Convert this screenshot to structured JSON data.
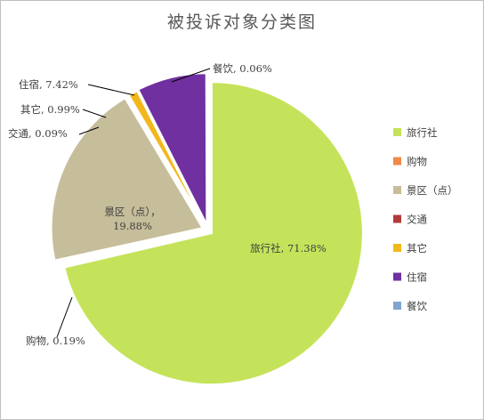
{
  "chart_data": {
    "type": "pie",
    "title": "被投诉对象分类图",
    "series": [
      {
        "name": "旅行社",
        "value": 71.38,
        "label": "旅行社, 71.38%",
        "color": "#c5e35a"
      },
      {
        "name": "购物",
        "value": 0.19,
        "label": "购物, 0.19%",
        "color": "#f0894a"
      },
      {
        "name": "景区（点）",
        "value": 19.88,
        "label_lines": [
          "景区（点），",
          "19.88%"
        ],
        "color": "#c6bd9a"
      },
      {
        "name": "交通",
        "value": 0.09,
        "label": "交通, 0.09%",
        "color": "#b23a3a"
      },
      {
        "name": "其它",
        "value": 0.99,
        "label": "其它, 0.99%",
        "color": "#f2b71b"
      },
      {
        "name": "住宿",
        "value": 7.42,
        "label": "住宿, 7.42%",
        "color": "#7030a0"
      },
      {
        "name": "餐饮",
        "value": 0.06,
        "label": "餐饮, 0.06%",
        "color": "#7fa6cf"
      }
    ],
    "legend": {
      "position": "right",
      "entries": [
        "旅行社",
        "购物",
        "景区（点）",
        "交通",
        "其它",
        "住宿",
        "餐饮"
      ]
    }
  }
}
